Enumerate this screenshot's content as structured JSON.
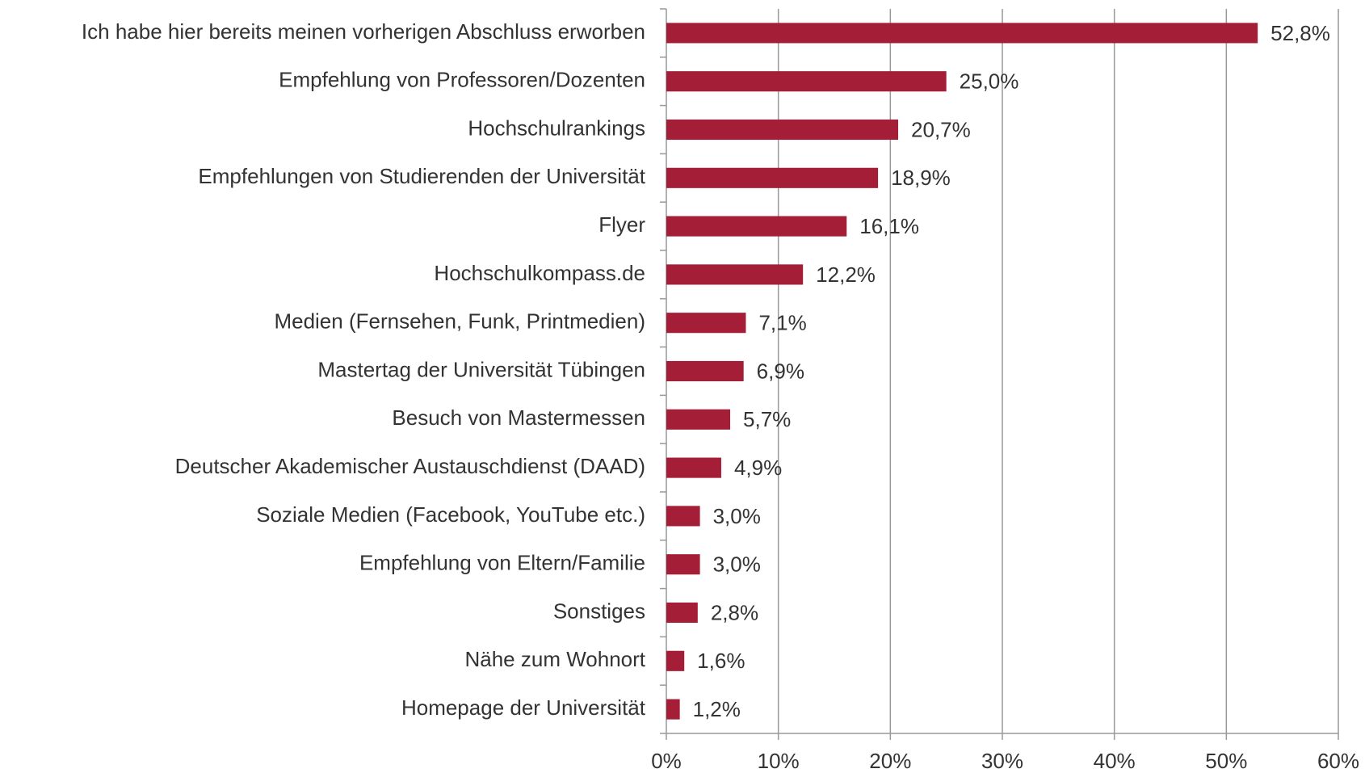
{
  "chart_data": {
    "type": "barh",
    "categories": [
      "Ich habe hier bereits meinen vorherigen Abschluss erworben",
      "Empfehlung von Professoren/Dozenten",
      "Hochschulrankings",
      "Empfehlungen von Studierenden der Universität",
      "Flyer",
      "Hochschulkompass.de",
      "Medien (Fernsehen, Funk, Printmedien)",
      "Mastertag der Universität Tübingen",
      "Besuch von Mastermessen",
      "Deutscher Akademischer Austauschdienst (DAAD)",
      "Soziale Medien (Facebook, YouTube etc.)",
      "Empfehlung von Eltern/Familie",
      "Sonstiges",
      "Nähe zum Wohnort",
      "Homepage der Universität"
    ],
    "values": [
      52.8,
      25.0,
      20.7,
      18.9,
      16.1,
      12.2,
      7.1,
      6.9,
      5.7,
      4.9,
      3.0,
      3.0,
      2.8,
      1.6,
      1.2
    ],
    "value_labels": [
      "52,8%",
      "25,0%",
      "20,7%",
      "18,9%",
      "16,1%",
      "12,2%",
      "7,1%",
      "6,9%",
      "5,7%",
      "4,9%",
      "3,0%",
      "3,0%",
      "2,8%",
      "1,6%",
      "1,2%"
    ],
    "color": "#a51e37",
    "xlim": [
      0,
      60
    ],
    "xticks": [
      {
        "value": 0,
        "label": "0%"
      },
      {
        "value": 10,
        "label": "10%"
      },
      {
        "value": 20,
        "label": "20%"
      },
      {
        "value": 30,
        "label": "30%"
      },
      {
        "value": 40,
        "label": "40%"
      },
      {
        "value": 50,
        "label": "50%"
      },
      {
        "value": 60,
        "label": "60%"
      }
    ],
    "grid": true
  }
}
